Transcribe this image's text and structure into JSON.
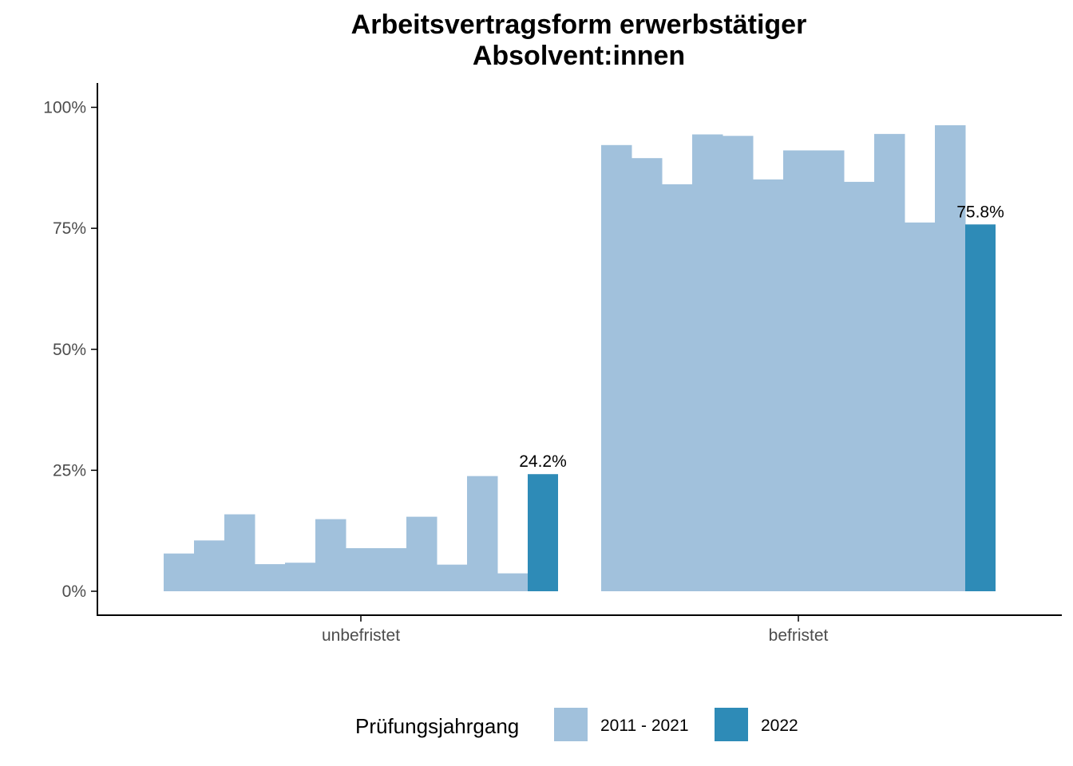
{
  "chart_data": {
    "type": "bar",
    "title_lines": [
      "Arbeitsvertragsform erwerbstätiger",
      "Absolvent:innen"
    ],
    "xlabel": "",
    "ylabel": "",
    "ylim": [
      0,
      1.05
    ],
    "y_ticks": [
      {
        "value": 0,
        "label": "0%"
      },
      {
        "value": 0.25,
        "label": "25%"
      },
      {
        "value": 0.5,
        "label": "50%"
      },
      {
        "value": 0.75,
        "label": "75%"
      },
      {
        "value": 1.0,
        "label": "100%"
      }
    ],
    "grid": false,
    "legend_position": "bottom",
    "legend": {
      "title": "Prüfungsjahrgang",
      "entries": [
        {
          "label": "2011 - 2021",
          "color": "#a1c1dc"
        },
        {
          "label": "2022",
          "color": "#2e8bb7"
        }
      ]
    },
    "colors": {
      "past": "#a1c1dc",
      "current": "#2e8bb7"
    },
    "groups": [
      {
        "category": "unbefristet",
        "past_values": [
          0.078,
          0.105,
          0.159,
          0.056,
          0.059,
          0.149,
          0.089,
          0.089,
          0.154,
          0.055,
          0.238,
          0.037
        ],
        "current_value": 0.242,
        "current_label": "24.2%"
      },
      {
        "category": "befristet",
        "past_values": [
          0.922,
          0.895,
          0.841,
          0.944,
          0.941,
          0.851,
          0.911,
          0.911,
          0.846,
          0.945,
          0.762,
          0.963
        ],
        "current_value": 0.758,
        "current_label": "75.8%"
      }
    ]
  }
}
